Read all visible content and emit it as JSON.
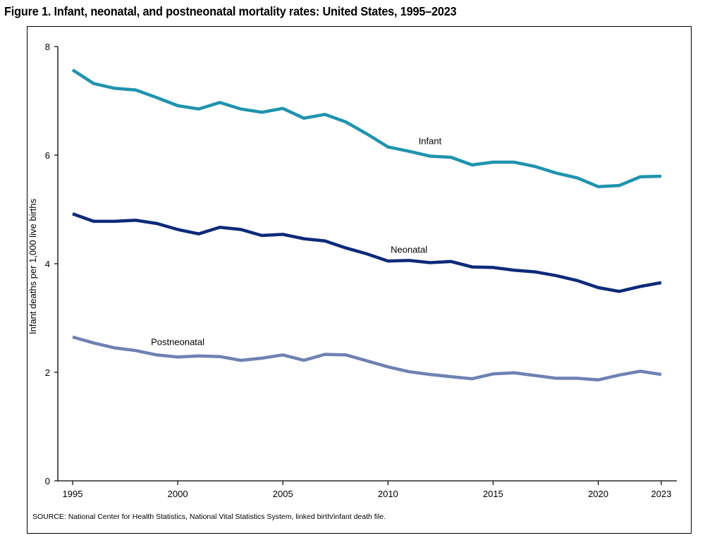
{
  "chart_data": {
    "type": "line",
    "title": "Figure 1. Infant, neonatal, and postneonatal mortality rates: United States, 1995–2023",
    "xlabel": "",
    "ylabel": "Infant deaths per 1,000 live births",
    "xlim": [
      1995,
      2023
    ],
    "ylim": [
      0,
      8
    ],
    "xticks": [
      1995,
      2000,
      2005,
      2010,
      2015,
      2020,
      2023
    ],
    "yticks": [
      0,
      2,
      4,
      6,
      8
    ],
    "grid": false,
    "x": [
      1995,
      1996,
      1997,
      1998,
      1999,
      2000,
      2001,
      2002,
      2003,
      2004,
      2005,
      2006,
      2007,
      2008,
      2009,
      2010,
      2011,
      2012,
      2013,
      2014,
      2015,
      2016,
      2017,
      2018,
      2019,
      2020,
      2021,
      2022,
      2023
    ],
    "series": [
      {
        "name": "Infant",
        "color": "#1f93ae",
        "label_at": [
          2012,
          6.2
        ],
        "values": [
          7.57,
          7.32,
          7.23,
          7.2,
          7.06,
          6.91,
          6.85,
          6.97,
          6.85,
          6.79,
          6.86,
          6.68,
          6.75,
          6.61,
          6.39,
          6.15,
          6.07,
          5.98,
          5.96,
          5.82,
          5.87,
          5.87,
          5.79,
          5.67,
          5.58,
          5.42,
          5.44,
          5.6,
          5.61
        ]
      },
      {
        "name": "Neonatal",
        "color": "#0d2a7a",
        "label_at": [
          2011,
          4.2
        ],
        "values": [
          4.92,
          4.78,
          4.78,
          4.8,
          4.74,
          4.63,
          4.55,
          4.67,
          4.63,
          4.52,
          4.54,
          4.46,
          4.42,
          4.29,
          4.18,
          4.05,
          4.06,
          4.02,
          4.04,
          3.94,
          3.93,
          3.88,
          3.85,
          3.78,
          3.69,
          3.56,
          3.49,
          3.58,
          3.65
        ]
      },
      {
        "name": "Postneonatal",
        "color": "#6f81b3",
        "label_at": [
          2000,
          2.5
        ],
        "values": [
          2.65,
          2.54,
          2.45,
          2.4,
          2.32,
          2.28,
          2.3,
          2.29,
          2.22,
          2.26,
          2.32,
          2.22,
          2.33,
          2.32,
          2.21,
          2.1,
          2.01,
          1.96,
          1.92,
          1.88,
          1.97,
          1.99,
          1.94,
          1.89,
          1.89,
          1.86,
          1.95,
          2.02,
          1.96
        ]
      }
    ],
    "source": "SOURCE: National Center for Health Statistics, National Vital Statistics System, linked birth/infant death file."
  }
}
